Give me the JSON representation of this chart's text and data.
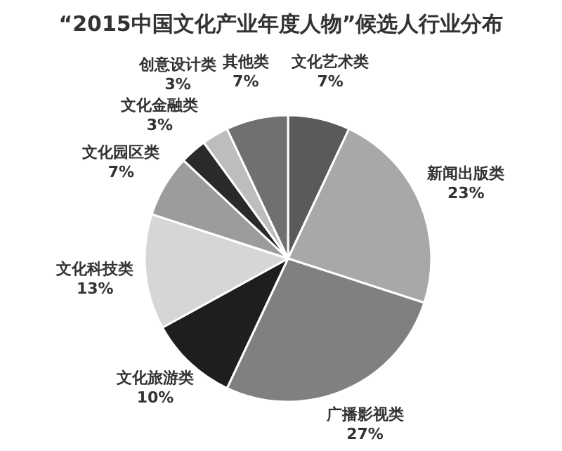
{
  "chart_data": {
    "type": "pie",
    "title": "“2015中国文化产业年度人物”候选人行业分布",
    "categories": [
      "文化艺术类",
      "新闻出版类",
      "广播影视类",
      "文化旅游类",
      "文化科技类",
      "文化园区类",
      "文化金融类",
      "创意设计类",
      "其他类"
    ],
    "values": [
      7,
      23,
      27,
      10,
      13,
      7,
      3,
      3,
      7
    ],
    "value_labels": [
      "7%",
      "23%",
      "27%",
      "10%",
      "13%",
      "7%",
      "3%",
      "3%",
      "7%"
    ],
    "colors": [
      "#5a5a5a",
      "#a8a8a8",
      "#808080",
      "#1e1e1e",
      "#d6d6d6",
      "#9c9c9c",
      "#2a2a2a",
      "#bdbdbd",
      "#707070"
    ],
    "legend": false
  }
}
